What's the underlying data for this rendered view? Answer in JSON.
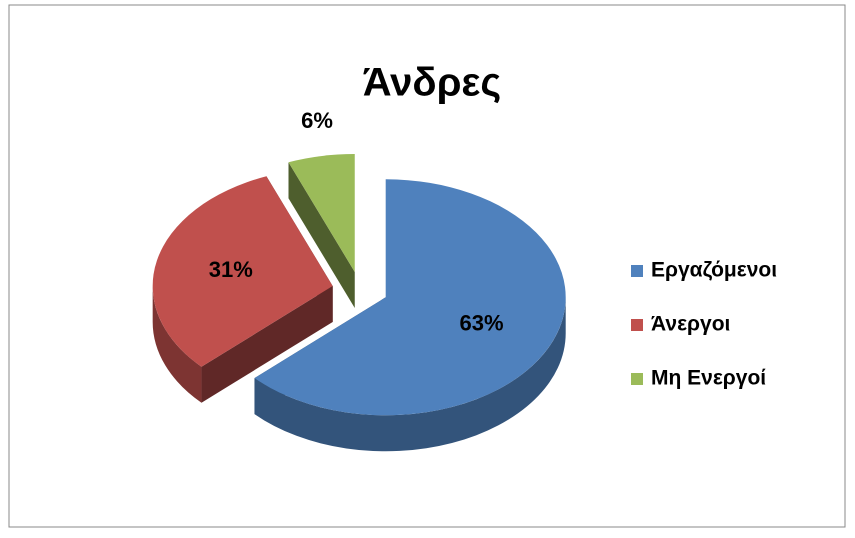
{
  "chart_data": {
    "type": "pie",
    "title": "Άνδρες",
    "categories": [
      "Εργαζόμενοι",
      "Άνεργοι",
      "Μη Ενεργοί"
    ],
    "values": [
      63,
      31,
      6
    ],
    "value_labels": [
      "63%",
      "31%",
      "6%"
    ],
    "colors": [
      "#4f81bd",
      "#c0504d",
      "#9bbb59"
    ],
    "legend": "right"
  }
}
